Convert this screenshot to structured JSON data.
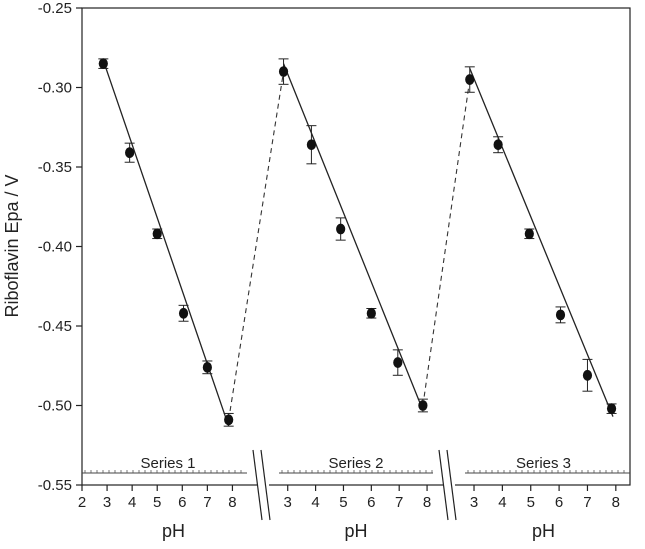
{
  "chart_data": {
    "type": "scatter",
    "title": "",
    "ylabel": "Riboflavin Epa / V",
    "xlabel": "pH",
    "ylim": [
      -0.55,
      -0.25
    ],
    "y_ticks": [
      "-0.25",
      "-0.30",
      "-0.35",
      "-0.40",
      "-0.45",
      "-0.50",
      "-0.55"
    ],
    "y_tick_values": [
      -0.25,
      -0.3,
      -0.35,
      -0.4,
      -0.45,
      -0.5,
      -0.55
    ],
    "grid": false,
    "legend": "none",
    "axis_breaks": true,
    "connector_style": "dashed",
    "panels": [
      {
        "name": "Series 1",
        "xlabel": "pH",
        "x_ticks": [
          "2",
          "3",
          "4",
          "5",
          "6",
          "7",
          "8"
        ],
        "x_tick_values": [
          2,
          3,
          4,
          5,
          6,
          7,
          8
        ],
        "xlim": [
          2,
          8.9
        ],
        "x": [
          2.85,
          3.9,
          5.0,
          6.05,
          7.0,
          7.85
        ],
        "y": [
          -0.285,
          -0.341,
          -0.392,
          -0.442,
          -0.476,
          -0.509
        ],
        "err": [
          0.003,
          0.006,
          0.003,
          0.005,
          0.004,
          0.004
        ],
        "fit": {
          "x": [
            2.85,
            7.85
          ],
          "y": [
            -0.283,
            -0.513
          ]
        }
      },
      {
        "name": "Series 2",
        "xlabel": "pH",
        "x_ticks": [
          "3",
          "4",
          "5",
          "6",
          "7",
          "8"
        ],
        "x_tick_values": [
          3,
          4,
          5,
          6,
          7,
          8
        ],
        "xlim": [
          2.4,
          8.5
        ],
        "x": [
          2.85,
          3.85,
          4.9,
          6.0,
          6.95,
          7.85
        ],
        "y": [
          -0.29,
          -0.336,
          -0.389,
          -0.442,
          -0.473,
          -0.5
        ],
        "err": [
          0.008,
          0.012,
          0.007,
          0.003,
          0.008,
          0.004
        ],
        "fit": {
          "x": [
            2.85,
            7.85
          ],
          "y": [
            -0.285,
            -0.503
          ]
        }
      },
      {
        "name": "Series 3",
        "xlabel": "pH",
        "x_ticks": [
          "3",
          "4",
          "5",
          "6",
          "7",
          "8"
        ],
        "x_tick_values": [
          3,
          4,
          5,
          6,
          7,
          8
        ],
        "xlim": [
          2.4,
          8.5
        ],
        "x": [
          2.85,
          3.85,
          4.95,
          6.05,
          7.0,
          7.85
        ],
        "y": [
          -0.295,
          -0.336,
          -0.392,
          -0.443,
          -0.481,
          -0.502
        ],
        "err": [
          0.008,
          0.005,
          0.003,
          0.005,
          0.01,
          0.003
        ],
        "fit": {
          "x": [
            2.85,
            7.9
          ],
          "y": [
            -0.288,
            -0.507
          ]
        }
      }
    ]
  }
}
